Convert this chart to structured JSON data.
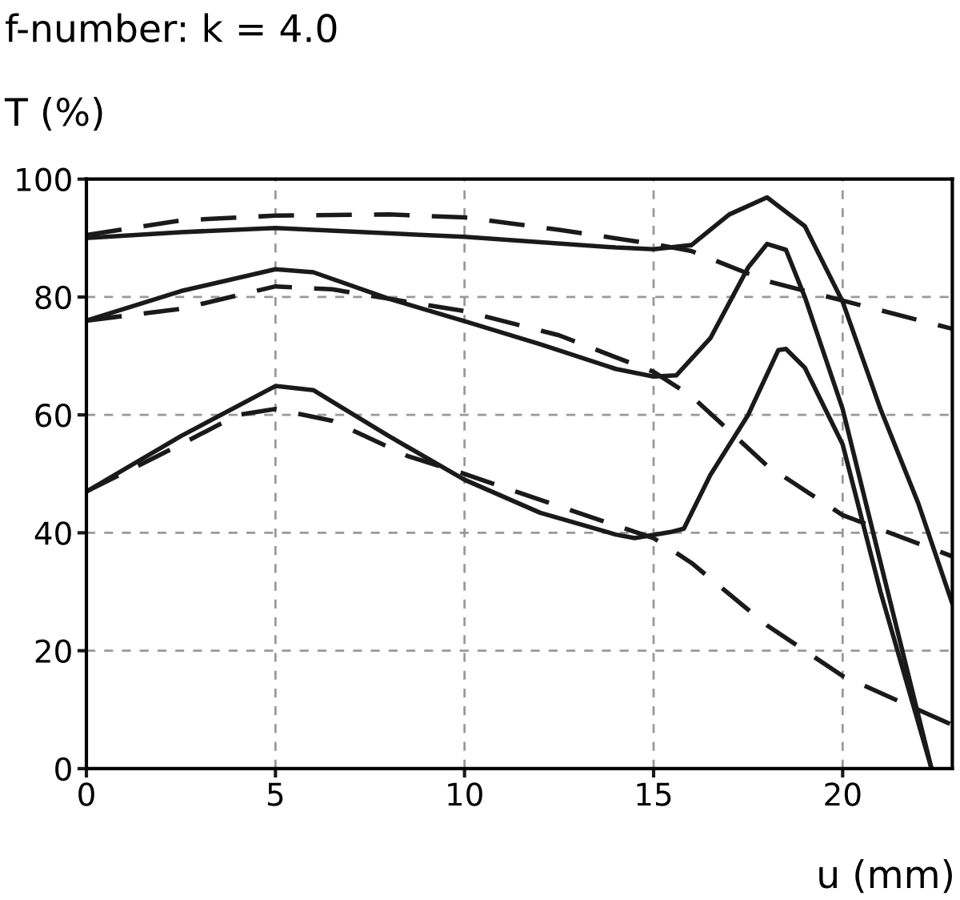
{
  "chart_data": {
    "type": "line",
    "title": "f-number: k = 4.0",
    "ylabel": "T (%)",
    "xlabel": "u (mm)",
    "xlim": [
      0,
      22.9
    ],
    "ylim": [
      0,
      100
    ],
    "xticks": [
      0,
      5,
      10,
      15,
      20
    ],
    "yticks": [
      0,
      20,
      40,
      60,
      80,
      100
    ],
    "grid": true,
    "series": [
      {
        "color": "#1a1a1a",
        "line_style": "solid",
        "x": [
          0,
          2.5,
          5,
          10,
          14,
          15,
          16,
          17,
          18,
          19,
          20,
          21,
          22,
          22.9
        ],
        "values": [
          90,
          91,
          91.7,
          90.2,
          88.4,
          88.1,
          88.8,
          94,
          96.9,
          92,
          79.2,
          61,
          45,
          28
        ]
      },
      {
        "color": "#1a1a1a",
        "line_style": "solid",
        "x": [
          0,
          2.5,
          5,
          6,
          8,
          10,
          12,
          14,
          15,
          15.6,
          16.5,
          17.5,
          18,
          18.5,
          19,
          20,
          21,
          22.35
        ],
        "values": [
          76,
          81,
          84.7,
          84.2,
          79.7,
          75.9,
          72,
          67.8,
          66.5,
          66.7,
          73,
          85,
          89,
          88,
          80,
          61,
          35,
          0
        ]
      },
      {
        "color": "#1a1a1a",
        "line_style": "solid",
        "x": [
          0,
          2.5,
          5,
          6,
          8,
          10,
          12,
          14,
          14.5,
          15.5,
          15.8,
          16.5,
          17.5,
          18.3,
          18.5,
          19,
          20,
          21,
          22.35
        ],
        "values": [
          47,
          56.4,
          64.9,
          64.2,
          56.4,
          49,
          43.4,
          39.7,
          39.1,
          40.2,
          40.7,
          49.8,
          60,
          71,
          71.2,
          68,
          55,
          30,
          0
        ]
      },
      {
        "color": "#1a1a1a",
        "line_style": "dashed",
        "x": [
          0,
          2.5,
          5,
          8,
          10,
          12.5,
          15,
          16,
          18,
          20,
          22.9
        ],
        "values": [
          90.5,
          93,
          93.8,
          94,
          93.5,
          91.4,
          89,
          87.8,
          82.7,
          79.4,
          74.6
        ]
      },
      {
        "color": "#1a1a1a",
        "line_style": "dashed",
        "x": [
          0,
          2.5,
          5,
          6.5,
          10,
          12.5,
          15,
          16,
          18,
          20,
          22.9
        ],
        "values": [
          76,
          78,
          81.8,
          81.3,
          77.6,
          73.5,
          67.3,
          63.2,
          51.4,
          43,
          36
        ]
      },
      {
        "color": "#1a1a1a",
        "line_style": "dashed",
        "x": [
          0,
          2.5,
          4,
          5,
          6.5,
          8.5,
          10,
          12.5,
          15,
          16,
          18,
          20,
          22.9
        ],
        "values": [
          47,
          55,
          60,
          61,
          59,
          53,
          50,
          44.5,
          39.1,
          34.9,
          24.3,
          15.7,
          7.4
        ]
      }
    ]
  }
}
